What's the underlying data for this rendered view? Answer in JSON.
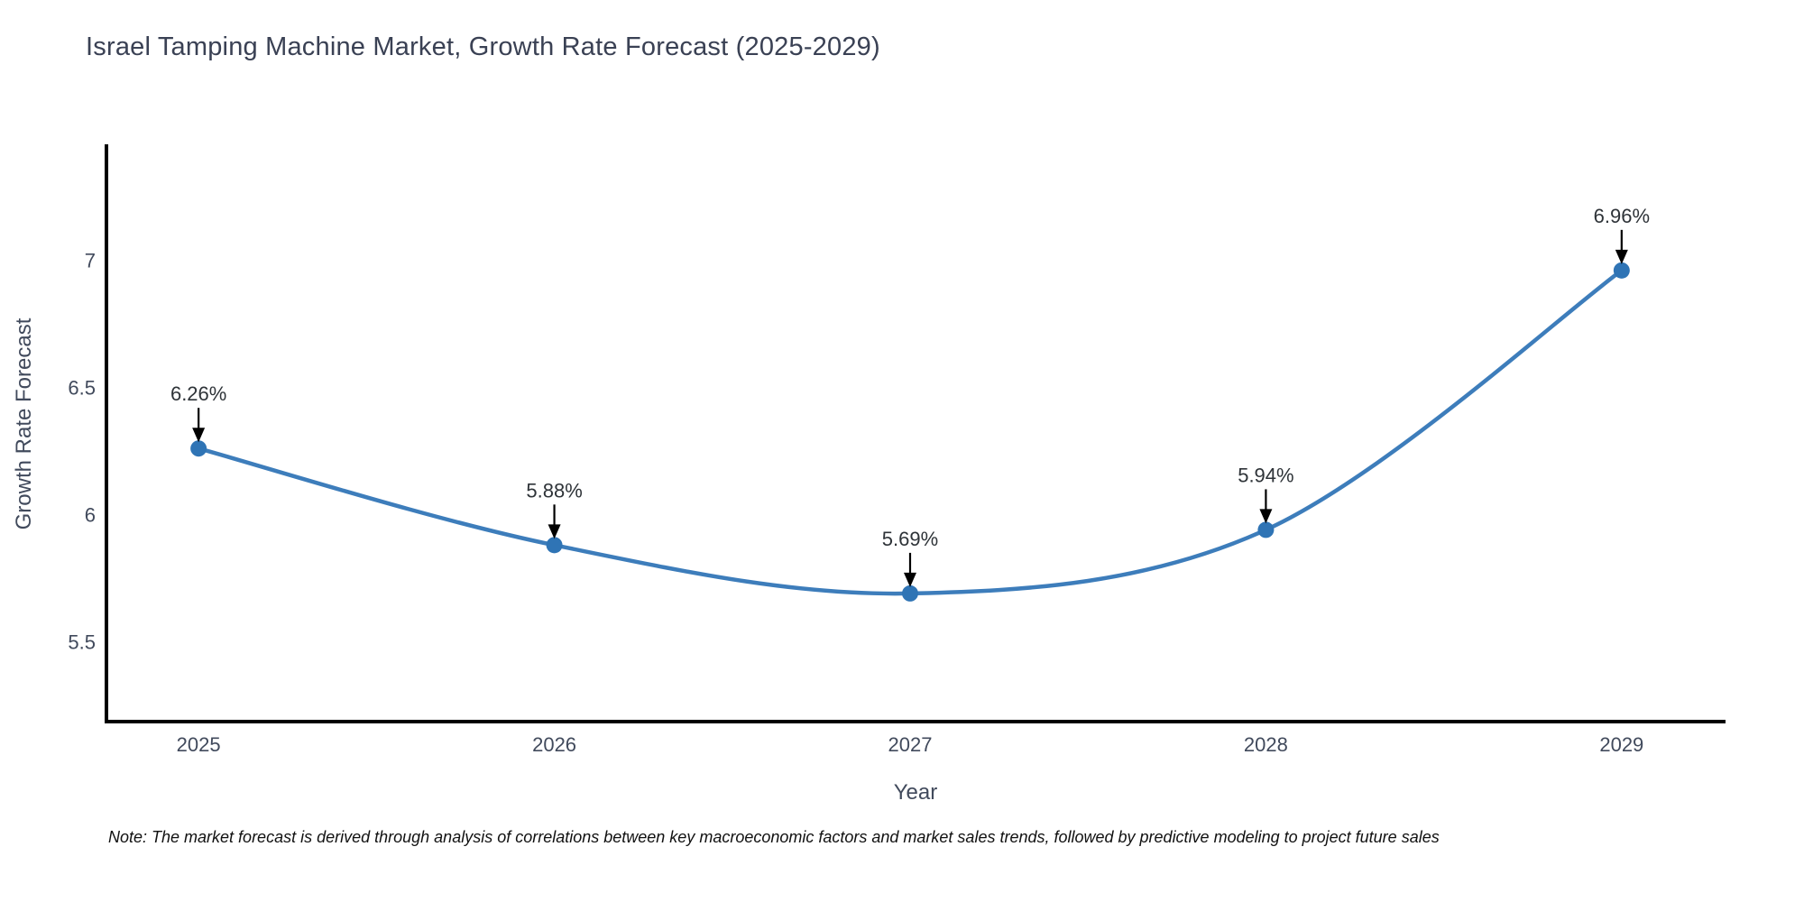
{
  "chart_data": {
    "type": "line",
    "title": "Israel Tamping Machine Market, Growth Rate Forecast (2025-2029)",
    "xlabel": "Year",
    "ylabel": "Growth Rate Forecast",
    "x": [
      2025,
      2026,
      2027,
      2028,
      2029
    ],
    "y": [
      6.26,
      5.88,
      5.69,
      5.94,
      6.96
    ],
    "point_labels": [
      "6.26%",
      "5.88%",
      "5.69%",
      "5.94%",
      "6.96%"
    ],
    "xtick_labels": [
      "2025",
      "2026",
      "2027",
      "2028",
      "2029"
    ],
    "yticks": [
      5.5,
      6,
      6.5,
      7
    ],
    "ytick_labels": [
      "5.5",
      "6",
      "6.5",
      "7"
    ],
    "xlim": [
      2024.741,
      2029.292
    ],
    "ylim": [
      5.186,
      7.456
    ],
    "grid": false,
    "smooth": true,
    "legend": "none",
    "line_color": "#3d7dbb",
    "marker_color": "#2f74b5",
    "annotation_color": "#2e3338",
    "arrow_color": "#000000",
    "axis_color": "#000000",
    "tick_label_color": "#414a5c",
    "title_color": "#3a4154"
  },
  "note": {
    "text": "Note: The market forecast is derived through analysis of correlations between key macroeconomic factors and market sales trends, followed by predictive modeling to project future sales"
  }
}
